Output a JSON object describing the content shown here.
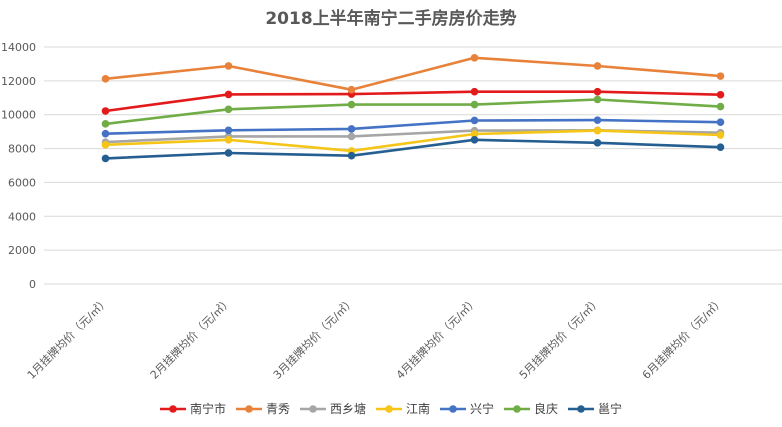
{
  "chart_data": {
    "type": "line",
    "title": "2018上半年南宁二手房房价走势",
    "xlabel": "",
    "ylabel": "",
    "categories": [
      "1月挂牌均价（元/㎡）",
      "2月挂牌均价（元/㎡）",
      "3月挂牌均价（元/㎡）",
      "4月挂牌均价（元/㎡）",
      "5月挂牌均价（元/㎡）",
      "6月挂牌均价（元/㎡）"
    ],
    "ylim": [
      0,
      14000
    ],
    "yticks": [
      0,
      2000,
      4000,
      6000,
      8000,
      10000,
      12000,
      14000
    ],
    "grid": true,
    "legend_position": "bottom",
    "series": [
      {
        "name": "南宁市",
        "color": "#e31a1c",
        "values": [
          10220,
          11200,
          11220,
          11360,
          11360,
          11180
        ]
      },
      {
        "name": "青秀",
        "color": "#e8823a",
        "values": [
          12120,
          12880,
          11480,
          13360,
          12880,
          12280
        ]
      },
      {
        "name": "西乡塘",
        "color": "#a6a6a6",
        "values": [
          8380,
          8720,
          8720,
          9060,
          9080,
          8940
        ]
      },
      {
        "name": "江南",
        "color": "#f5c518",
        "values": [
          8220,
          8520,
          7860,
          8860,
          9060,
          8800
        ]
      },
      {
        "name": "兴宁",
        "color": "#4472c4",
        "values": [
          8880,
          9080,
          9160,
          9660,
          9680,
          9560
        ]
      },
      {
        "name": "良庆",
        "color": "#70ad47",
        "values": [
          9460,
          10320,
          10600,
          10600,
          10900,
          10480
        ]
      },
      {
        "name": "邕宁",
        "color": "#255e91",
        "values": [
          7420,
          7740,
          7580,
          8520,
          8340,
          8080
        ]
      }
    ]
  }
}
